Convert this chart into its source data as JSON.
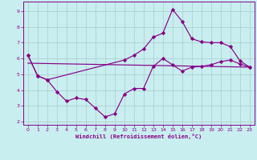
{
  "xlabel": "Windchill (Refroidissement éolien,°C)",
  "background_color": "#c8eef0",
  "line_color": "#880088",
  "grid_color": "#aacccc",
  "xlim": [
    -0.5,
    23.5
  ],
  "ylim": [
    1.8,
    9.6
  ],
  "yticks": [
    2,
    3,
    4,
    5,
    6,
    7,
    8,
    9
  ],
  "xticks": [
    0,
    1,
    2,
    3,
    4,
    5,
    6,
    7,
    8,
    9,
    10,
    11,
    12,
    13,
    14,
    15,
    16,
    17,
    18,
    19,
    20,
    21,
    22,
    23
  ],
  "series1_x": [
    0,
    1,
    2,
    3,
    4,
    5,
    6,
    7,
    8,
    9,
    10,
    11,
    12,
    13,
    14,
    15,
    16,
    17,
    18,
    19,
    20,
    21,
    22,
    23
  ],
  "series1_y": [
    6.2,
    4.9,
    4.65,
    3.9,
    3.3,
    3.5,
    3.4,
    2.85,
    2.3,
    2.5,
    3.75,
    4.1,
    4.1,
    5.5,
    6.0,
    5.6,
    5.2,
    5.45,
    5.5,
    5.6,
    5.8,
    5.9,
    5.65,
    5.45
  ],
  "series2_x": [
    0,
    1,
    2,
    10,
    11,
    12,
    13,
    14,
    15,
    16,
    17,
    18,
    19,
    20,
    21,
    22,
    23
  ],
  "series2_y": [
    6.2,
    4.9,
    4.65,
    5.9,
    6.2,
    6.6,
    7.35,
    7.6,
    9.1,
    8.35,
    7.25,
    7.05,
    7.0,
    7.0,
    6.75,
    5.85,
    5.45
  ],
  "series3_x": [
    0,
    23
  ],
  "series3_y": [
    5.7,
    5.45
  ]
}
